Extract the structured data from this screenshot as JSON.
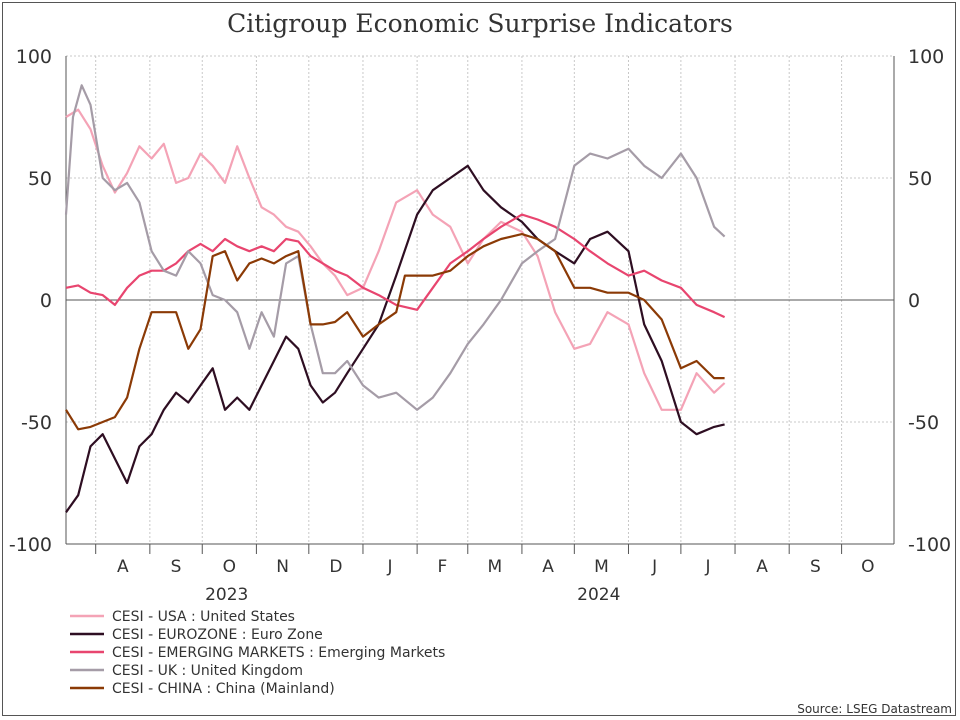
{
  "chart_data": {
    "type": "line",
    "title": "Citigroup Economic Surprise Indicators",
    "ylim": [
      -100,
      100
    ],
    "yticks": [
      100,
      50,
      0,
      -50,
      -100
    ],
    "x_range": [
      "2023-07-15",
      "2024-10-31"
    ],
    "month_ticks": [
      {
        "date": "2023-08-01",
        "label": "A"
      },
      {
        "date": "2023-09-01",
        "label": "S"
      },
      {
        "date": "2023-10-01",
        "label": "O"
      },
      {
        "date": "2023-11-01",
        "label": "N"
      },
      {
        "date": "2023-12-01",
        "label": "D"
      },
      {
        "date": "2024-01-01",
        "label": "J"
      },
      {
        "date": "2024-02-01",
        "label": "F"
      },
      {
        "date": "2024-03-01",
        "label": "M"
      },
      {
        "date": "2024-04-01",
        "label": "A"
      },
      {
        "date": "2024-05-01",
        "label": "M"
      },
      {
        "date": "2024-06-01",
        "label": "J"
      },
      {
        "date": "2024-07-01",
        "label": "J"
      },
      {
        "date": "2024-08-01",
        "label": "A"
      },
      {
        "date": "2024-09-01",
        "label": "S"
      },
      {
        "date": "2024-10-01",
        "label": "O"
      }
    ],
    "year_labels": [
      {
        "date": "2023-10-15",
        "label": "2023"
      },
      {
        "date": "2024-05-15",
        "label": "2024"
      }
    ],
    "grid": true,
    "legend_position": "bottom-left",
    "series": [
      {
        "name": "CESI - USA : United States",
        "color": "#f4a3b6",
        "points": [
          [
            "2023-07-15",
            75
          ],
          [
            "2023-07-22",
            78
          ],
          [
            "2023-07-29",
            70
          ],
          [
            "2023-08-05",
            55
          ],
          [
            "2023-08-12",
            44
          ],
          [
            "2023-08-19",
            52
          ],
          [
            "2023-08-26",
            63
          ],
          [
            "2023-09-02",
            58
          ],
          [
            "2023-09-09",
            64
          ],
          [
            "2023-09-16",
            48
          ],
          [
            "2023-09-23",
            50
          ],
          [
            "2023-09-30",
            60
          ],
          [
            "2023-10-07",
            55
          ],
          [
            "2023-10-14",
            48
          ],
          [
            "2023-10-21",
            63
          ],
          [
            "2023-10-28",
            50
          ],
          [
            "2023-11-04",
            38
          ],
          [
            "2023-11-11",
            35
          ],
          [
            "2023-11-18",
            30
          ],
          [
            "2023-11-25",
            28
          ],
          [
            "2023-12-02",
            22
          ],
          [
            "2023-12-09",
            15
          ],
          [
            "2023-12-16",
            10
          ],
          [
            "2023-12-23",
            2
          ],
          [
            "2024-01-01",
            5
          ],
          [
            "2024-01-10",
            20
          ],
          [
            "2024-01-20",
            40
          ],
          [
            "2024-02-01",
            45
          ],
          [
            "2024-02-10",
            35
          ],
          [
            "2024-02-20",
            30
          ],
          [
            "2024-03-01",
            15
          ],
          [
            "2024-03-10",
            25
          ],
          [
            "2024-03-20",
            32
          ],
          [
            "2024-04-01",
            28
          ],
          [
            "2024-04-10",
            18
          ],
          [
            "2024-04-20",
            -5
          ],
          [
            "2024-05-01",
            -20
          ],
          [
            "2024-05-10",
            -18
          ],
          [
            "2024-05-20",
            -5
          ],
          [
            "2024-06-01",
            -10
          ],
          [
            "2024-06-10",
            -30
          ],
          [
            "2024-06-20",
            -45
          ],
          [
            "2024-07-01",
            -45
          ],
          [
            "2024-07-10",
            -30
          ],
          [
            "2024-07-20",
            -38
          ],
          [
            "2024-07-26",
            -34
          ]
        ]
      },
      {
        "name": "CESI - EUROZONE : Euro Zone",
        "color": "#2e0e22",
        "points": [
          [
            "2023-07-15",
            -87
          ],
          [
            "2023-07-22",
            -80
          ],
          [
            "2023-07-29",
            -60
          ],
          [
            "2023-08-05",
            -55
          ],
          [
            "2023-08-12",
            -65
          ],
          [
            "2023-08-19",
            -75
          ],
          [
            "2023-08-26",
            -60
          ],
          [
            "2023-09-02",
            -55
          ],
          [
            "2023-09-09",
            -45
          ],
          [
            "2023-09-16",
            -38
          ],
          [
            "2023-09-23",
            -42
          ],
          [
            "2023-09-30",
            -35
          ],
          [
            "2023-10-07",
            -28
          ],
          [
            "2023-10-14",
            -45
          ],
          [
            "2023-10-21",
            -40
          ],
          [
            "2023-10-28",
            -45
          ],
          [
            "2023-11-04",
            -35
          ],
          [
            "2023-11-11",
            -25
          ],
          [
            "2023-11-18",
            -15
          ],
          [
            "2023-11-25",
            -20
          ],
          [
            "2023-12-02",
            -35
          ],
          [
            "2023-12-09",
            -42
          ],
          [
            "2023-12-16",
            -38
          ],
          [
            "2023-12-23",
            -30
          ],
          [
            "2024-01-01",
            -20
          ],
          [
            "2024-01-10",
            -10
          ],
          [
            "2024-01-20",
            10
          ],
          [
            "2024-02-01",
            35
          ],
          [
            "2024-02-10",
            45
          ],
          [
            "2024-02-20",
            50
          ],
          [
            "2024-03-01",
            55
          ],
          [
            "2024-03-10",
            45
          ],
          [
            "2024-03-20",
            38
          ],
          [
            "2024-04-01",
            32
          ],
          [
            "2024-04-10",
            25
          ],
          [
            "2024-04-20",
            20
          ],
          [
            "2024-05-01",
            15
          ],
          [
            "2024-05-10",
            25
          ],
          [
            "2024-05-20",
            28
          ],
          [
            "2024-06-01",
            20
          ],
          [
            "2024-06-10",
            -10
          ],
          [
            "2024-06-20",
            -25
          ],
          [
            "2024-07-01",
            -50
          ],
          [
            "2024-07-10",
            -55
          ],
          [
            "2024-07-20",
            -52
          ],
          [
            "2024-07-26",
            -51
          ]
        ]
      },
      {
        "name": "CESI - EMERGING MARKETS : Emerging Markets",
        "color": "#e8456f",
        "points": [
          [
            "2023-07-15",
            5
          ],
          [
            "2023-07-22",
            6
          ],
          [
            "2023-07-29",
            3
          ],
          [
            "2023-08-05",
            2
          ],
          [
            "2023-08-12",
            -2
          ],
          [
            "2023-08-19",
            5
          ],
          [
            "2023-08-26",
            10
          ],
          [
            "2023-09-02",
            12
          ],
          [
            "2023-09-09",
            12
          ],
          [
            "2023-09-16",
            15
          ],
          [
            "2023-09-23",
            20
          ],
          [
            "2023-09-30",
            23
          ],
          [
            "2023-10-07",
            20
          ],
          [
            "2023-10-14",
            25
          ],
          [
            "2023-10-21",
            22
          ],
          [
            "2023-10-28",
            20
          ],
          [
            "2023-11-04",
            22
          ],
          [
            "2023-11-11",
            20
          ],
          [
            "2023-11-18",
            25
          ],
          [
            "2023-11-25",
            24
          ],
          [
            "2023-12-02",
            18
          ],
          [
            "2023-12-09",
            15
          ],
          [
            "2023-12-16",
            12
          ],
          [
            "2023-12-23",
            10
          ],
          [
            "2024-01-01",
            5
          ],
          [
            "2024-01-10",
            2
          ],
          [
            "2024-01-20",
            -2
          ],
          [
            "2024-02-01",
            -4
          ],
          [
            "2024-02-10",
            5
          ],
          [
            "2024-02-20",
            15
          ],
          [
            "2024-03-01",
            20
          ],
          [
            "2024-03-10",
            25
          ],
          [
            "2024-03-20",
            30
          ],
          [
            "2024-04-01",
            35
          ],
          [
            "2024-04-10",
            33
          ],
          [
            "2024-04-20",
            30
          ],
          [
            "2024-05-01",
            25
          ],
          [
            "2024-05-10",
            20
          ],
          [
            "2024-05-20",
            15
          ],
          [
            "2024-06-01",
            10
          ],
          [
            "2024-06-10",
            12
          ],
          [
            "2024-06-20",
            8
          ],
          [
            "2024-07-01",
            5
          ],
          [
            "2024-07-10",
            -2
          ],
          [
            "2024-07-20",
            -5
          ],
          [
            "2024-07-26",
            -7
          ]
        ]
      },
      {
        "name": "CESI - UK : United Kingdom",
        "color": "#a59ca7",
        "points": [
          [
            "2023-07-15",
            35
          ],
          [
            "2023-07-19",
            75
          ],
          [
            "2023-07-24",
            88
          ],
          [
            "2023-07-29",
            80
          ],
          [
            "2023-08-05",
            50
          ],
          [
            "2023-08-12",
            45
          ],
          [
            "2023-08-19",
            48
          ],
          [
            "2023-08-26",
            40
          ],
          [
            "2023-09-02",
            20
          ],
          [
            "2023-09-09",
            12
          ],
          [
            "2023-09-16",
            10
          ],
          [
            "2023-09-23",
            20
          ],
          [
            "2023-09-30",
            15
          ],
          [
            "2023-10-07",
            2
          ],
          [
            "2023-10-14",
            0
          ],
          [
            "2023-10-21",
            -5
          ],
          [
            "2023-10-28",
            -20
          ],
          [
            "2023-11-04",
            -5
          ],
          [
            "2023-11-11",
            -15
          ],
          [
            "2023-11-18",
            15
          ],
          [
            "2023-11-25",
            18
          ],
          [
            "2023-12-02",
            -10
          ],
          [
            "2023-12-09",
            -30
          ],
          [
            "2023-12-16",
            -30
          ],
          [
            "2023-12-23",
            -25
          ],
          [
            "2024-01-01",
            -35
          ],
          [
            "2024-01-10",
            -40
          ],
          [
            "2024-01-20",
            -38
          ],
          [
            "2024-02-01",
            -45
          ],
          [
            "2024-02-10",
            -40
          ],
          [
            "2024-02-20",
            -30
          ],
          [
            "2024-03-01",
            -18
          ],
          [
            "2024-03-10",
            -10
          ],
          [
            "2024-03-20",
            0
          ],
          [
            "2024-04-01",
            15
          ],
          [
            "2024-04-10",
            20
          ],
          [
            "2024-04-20",
            25
          ],
          [
            "2024-05-01",
            55
          ],
          [
            "2024-05-10",
            60
          ],
          [
            "2024-05-20",
            58
          ],
          [
            "2024-06-01",
            62
          ],
          [
            "2024-06-10",
            55
          ],
          [
            "2024-06-20",
            50
          ],
          [
            "2024-07-01",
            60
          ],
          [
            "2024-07-10",
            50
          ],
          [
            "2024-07-20",
            30
          ],
          [
            "2024-07-26",
            26
          ]
        ]
      },
      {
        "name": "CESI - CHINA : China (Mainland)",
        "color": "#8b3a06",
        "points": [
          [
            "2023-07-15",
            -45
          ],
          [
            "2023-07-22",
            -53
          ],
          [
            "2023-07-29",
            -52
          ],
          [
            "2023-08-05",
            -50
          ],
          [
            "2023-08-12",
            -48
          ],
          [
            "2023-08-19",
            -40
          ],
          [
            "2023-08-26",
            -20
          ],
          [
            "2023-09-02",
            -5
          ],
          [
            "2023-09-09",
            -5
          ],
          [
            "2023-09-16",
            -5
          ],
          [
            "2023-09-23",
            -20
          ],
          [
            "2023-09-30",
            -12
          ],
          [
            "2023-10-07",
            18
          ],
          [
            "2023-10-14",
            20
          ],
          [
            "2023-10-21",
            8
          ],
          [
            "2023-10-28",
            15
          ],
          [
            "2023-11-04",
            17
          ],
          [
            "2023-11-11",
            15
          ],
          [
            "2023-11-18",
            18
          ],
          [
            "2023-11-25",
            20
          ],
          [
            "2023-12-02",
            -10
          ],
          [
            "2023-12-09",
            -10
          ],
          [
            "2023-12-16",
            -9
          ],
          [
            "2023-12-23",
            -5
          ],
          [
            "2024-01-01",
            -15
          ],
          [
            "2024-01-10",
            -10
          ],
          [
            "2024-01-20",
            -5
          ],
          [
            "2024-01-25",
            10
          ],
          [
            "2024-02-01",
            10
          ],
          [
            "2024-02-10",
            10
          ],
          [
            "2024-02-20",
            12
          ],
          [
            "2024-03-01",
            18
          ],
          [
            "2024-03-10",
            22
          ],
          [
            "2024-03-20",
            25
          ],
          [
            "2024-04-01",
            27
          ],
          [
            "2024-04-10",
            25
          ],
          [
            "2024-04-20",
            20
          ],
          [
            "2024-05-01",
            5
          ],
          [
            "2024-05-10",
            5
          ],
          [
            "2024-05-20",
            3
          ],
          [
            "2024-06-01",
            3
          ],
          [
            "2024-06-10",
            0
          ],
          [
            "2024-06-20",
            -8
          ],
          [
            "2024-07-01",
            -28
          ],
          [
            "2024-07-10",
            -25
          ],
          [
            "2024-07-20",
            -32
          ],
          [
            "2024-07-26",
            -32
          ]
        ]
      }
    ],
    "source": "Source: LSEG Datastream"
  }
}
